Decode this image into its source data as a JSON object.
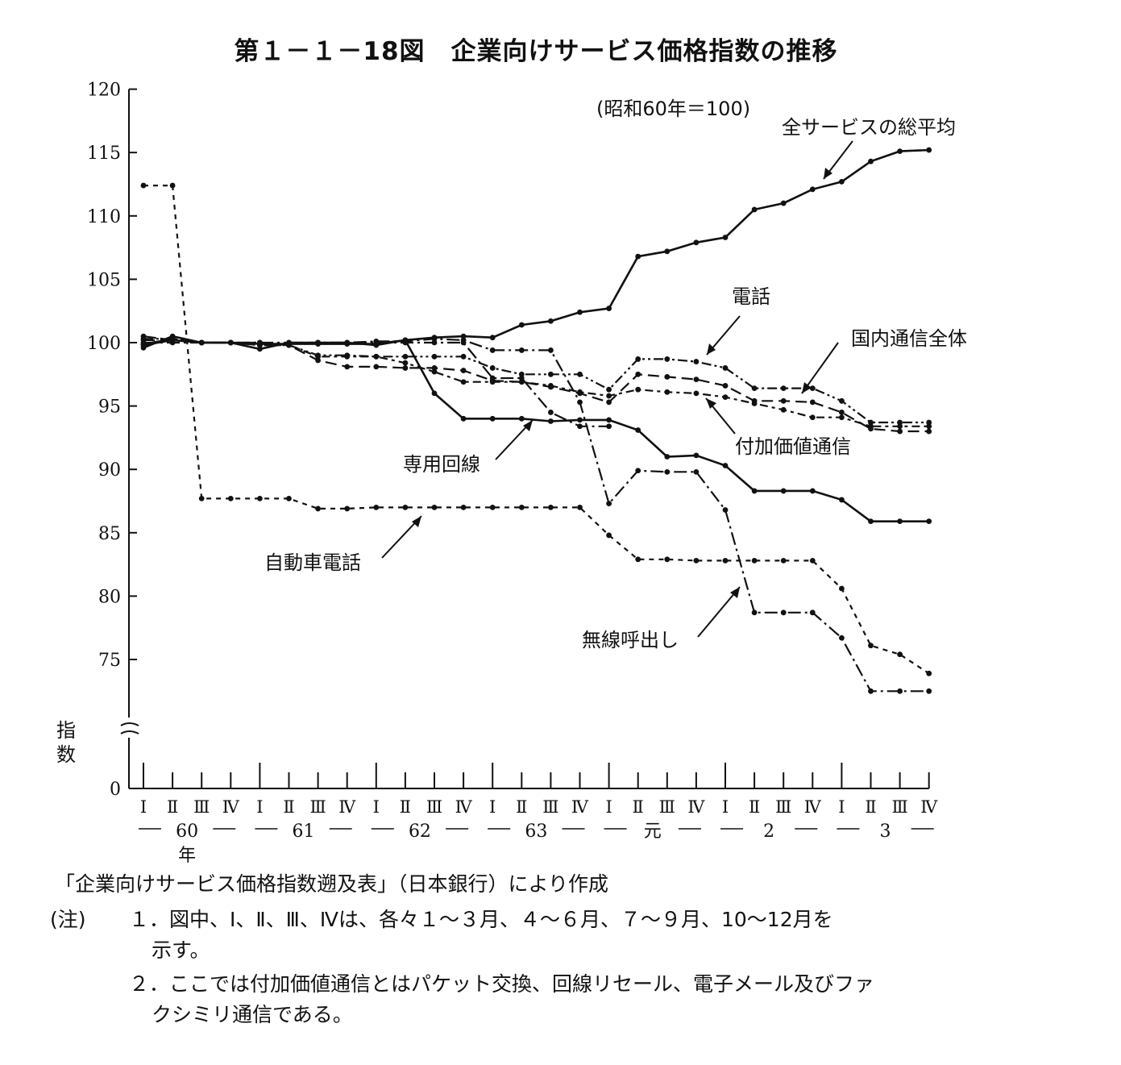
{
  "title": "第１－１－18図　企業向けサービス価格指数の推移",
  "base_note": "(昭和60年＝100)",
  "chart_data": {
    "type": "line",
    "title": "第１－１－18図　企業向けサービス価格指数の推移",
    "ylabel": "指数",
    "ylim": [
      70,
      120
    ],
    "yticks": [
      0,
      75,
      80,
      85,
      90,
      95,
      100,
      105,
      110,
      115,
      120
    ],
    "axis_break": true,
    "quarters": [
      "Ⅰ",
      "Ⅱ",
      "Ⅲ",
      "Ⅳ",
      "Ⅰ",
      "Ⅱ",
      "Ⅲ",
      "Ⅳ",
      "Ⅰ",
      "Ⅱ",
      "Ⅲ",
      "Ⅳ",
      "Ⅰ",
      "Ⅱ",
      "Ⅲ",
      "Ⅳ",
      "Ⅰ",
      "Ⅱ",
      "Ⅲ",
      "Ⅳ",
      "Ⅰ",
      "Ⅱ",
      "Ⅲ",
      "Ⅳ",
      "Ⅰ",
      "Ⅱ",
      "Ⅲ",
      "Ⅳ"
    ],
    "years": [
      "60",
      "61",
      "62",
      "63",
      "元",
      "2",
      "3"
    ],
    "year_suffix": "年",
    "series": [
      {
        "name": "全サービスの総平均",
        "style": "solid",
        "values": [
          99.6,
          100.5,
          100.0,
          100.0,
          99.5,
          100.0,
          100.0,
          100.0,
          99.8,
          100.2,
          100.4,
          100.5,
          100.4,
          101.4,
          101.7,
          102.4,
          102.7,
          106.8,
          107.2,
          107.9,
          108.3,
          110.5,
          111.0,
          112.1,
          112.7,
          114.3,
          115.1,
          115.2
        ]
      },
      {
        "name": "電話",
        "style": "dashdot",
        "values": [
          100.5,
          100.2,
          100.0,
          100.0,
          100.0,
          99.9,
          100.0,
          100.0,
          100.1,
          100.1,
          100.3,
          100.2,
          99.4,
          99.4,
          99.4,
          95.3,
          87.3,
          89.9,
          89.8,
          89.8,
          86.8,
          78.7,
          78.7,
          78.7,
          76.7,
          72.5,
          72.5,
          72.5
        ]
      },
      {
        "name": "国内通信全体",
        "style": "dashdotdot",
        "values": [
          100.3,
          100.3,
          100.0,
          100.0,
          99.8,
          99.8,
          99.0,
          99.0,
          98.9,
          98.9,
          98.9,
          98.9,
          98.0,
          97.5,
          97.5,
          97.5,
          96.3,
          98.7,
          98.7,
          98.5,
          98.0,
          96.4,
          96.4,
          96.4,
          95.4,
          93.7,
          93.7,
          93.7
        ]
      },
      {
        "name": "付加価値通信",
        "style": "dashed",
        "values": [
          100.2,
          100.2,
          100.0,
          100.0,
          100.0,
          99.8,
          98.6,
          98.1,
          98.1,
          98.0,
          98.0,
          97.8,
          97.0,
          96.9,
          96.5,
          96.0,
          95.3,
          97.5,
          97.3,
          97.1,
          96.6,
          95.4,
          95.4,
          95.3,
          94.5,
          93.2,
          93.0,
          93.0
        ]
      },
      {
        "name": "付加価値通信_2",
        "style": "dotdash",
        "values": [
          99.9,
          100.3,
          100.0,
          100.0,
          99.8,
          99.8,
          98.9,
          98.9,
          98.9,
          98.4,
          97.7,
          96.9,
          96.9,
          96.9,
          96.6,
          96.1,
          95.8,
          96.3,
          96.1,
          96.0,
          95.7,
          95.2,
          94.7,
          94.1,
          94.1,
          93.4,
          93.4,
          93.4
        ]
      },
      {
        "name": "専用回線",
        "style": "solid",
        "values": [
          99.8,
          100.2,
          100.0,
          100.0,
          99.9,
          99.9,
          99.9,
          99.9,
          99.9,
          100.2,
          96.0,
          94.0,
          94.0,
          94.0,
          93.8,
          93.9,
          93.9,
          93.1,
          91.0,
          91.1,
          90.3,
          88.3,
          88.3,
          88.3,
          87.6,
          85.9,
          85.9,
          85.9
        ]
      },
      {
        "name": "専用回線_2",
        "style": "dashdot",
        "values": [
          100.0,
          100.0,
          100.0,
          100.0,
          100.0,
          100.0,
          100.0,
          100.0,
          100.0,
          100.0,
          100.0,
          100.0,
          97.2,
          97.2,
          94.5,
          93.4,
          93.4,
          null,
          null,
          null,
          null,
          null,
          null,
          null,
          null,
          null,
          null,
          null
        ]
      },
      {
        "name": "自動車電話",
        "style": "shortdash",
        "values": [
          112.4,
          112.4,
          87.7,
          87.7,
          87.7,
          87.7,
          86.9,
          86.9,
          87.0,
          87.0,
          87.0,
          87.0,
          87.0,
          87.0,
          87.0,
          87.0,
          84.8,
          82.9,
          82.9,
          82.8,
          82.8,
          82.8,
          82.8,
          82.8,
          80.6,
          76.1,
          75.4,
          73.9
        ]
      }
    ],
    "annotations": [
      "全サービスの総平均",
      "電話",
      "国内通信全体",
      "付加価値通信",
      "専用回線",
      "自動車電話",
      "無線呼出し"
    ]
  },
  "footer": {
    "source": "「企業向けサービス価格指数遡及表」（日本銀行）により作成",
    "note_label": "(注)",
    "note1": "１．図中、Ⅰ、Ⅱ、Ⅲ、Ⅳは、各々１～３月、４～６月、７～９月、10～12月を",
    "note1_cont": "示す。",
    "note2": "２．ここでは付加価値通信とはパケット交換、回線リセール、電子メール及びファ",
    "note2_cont": "クシミリ通信である。"
  }
}
